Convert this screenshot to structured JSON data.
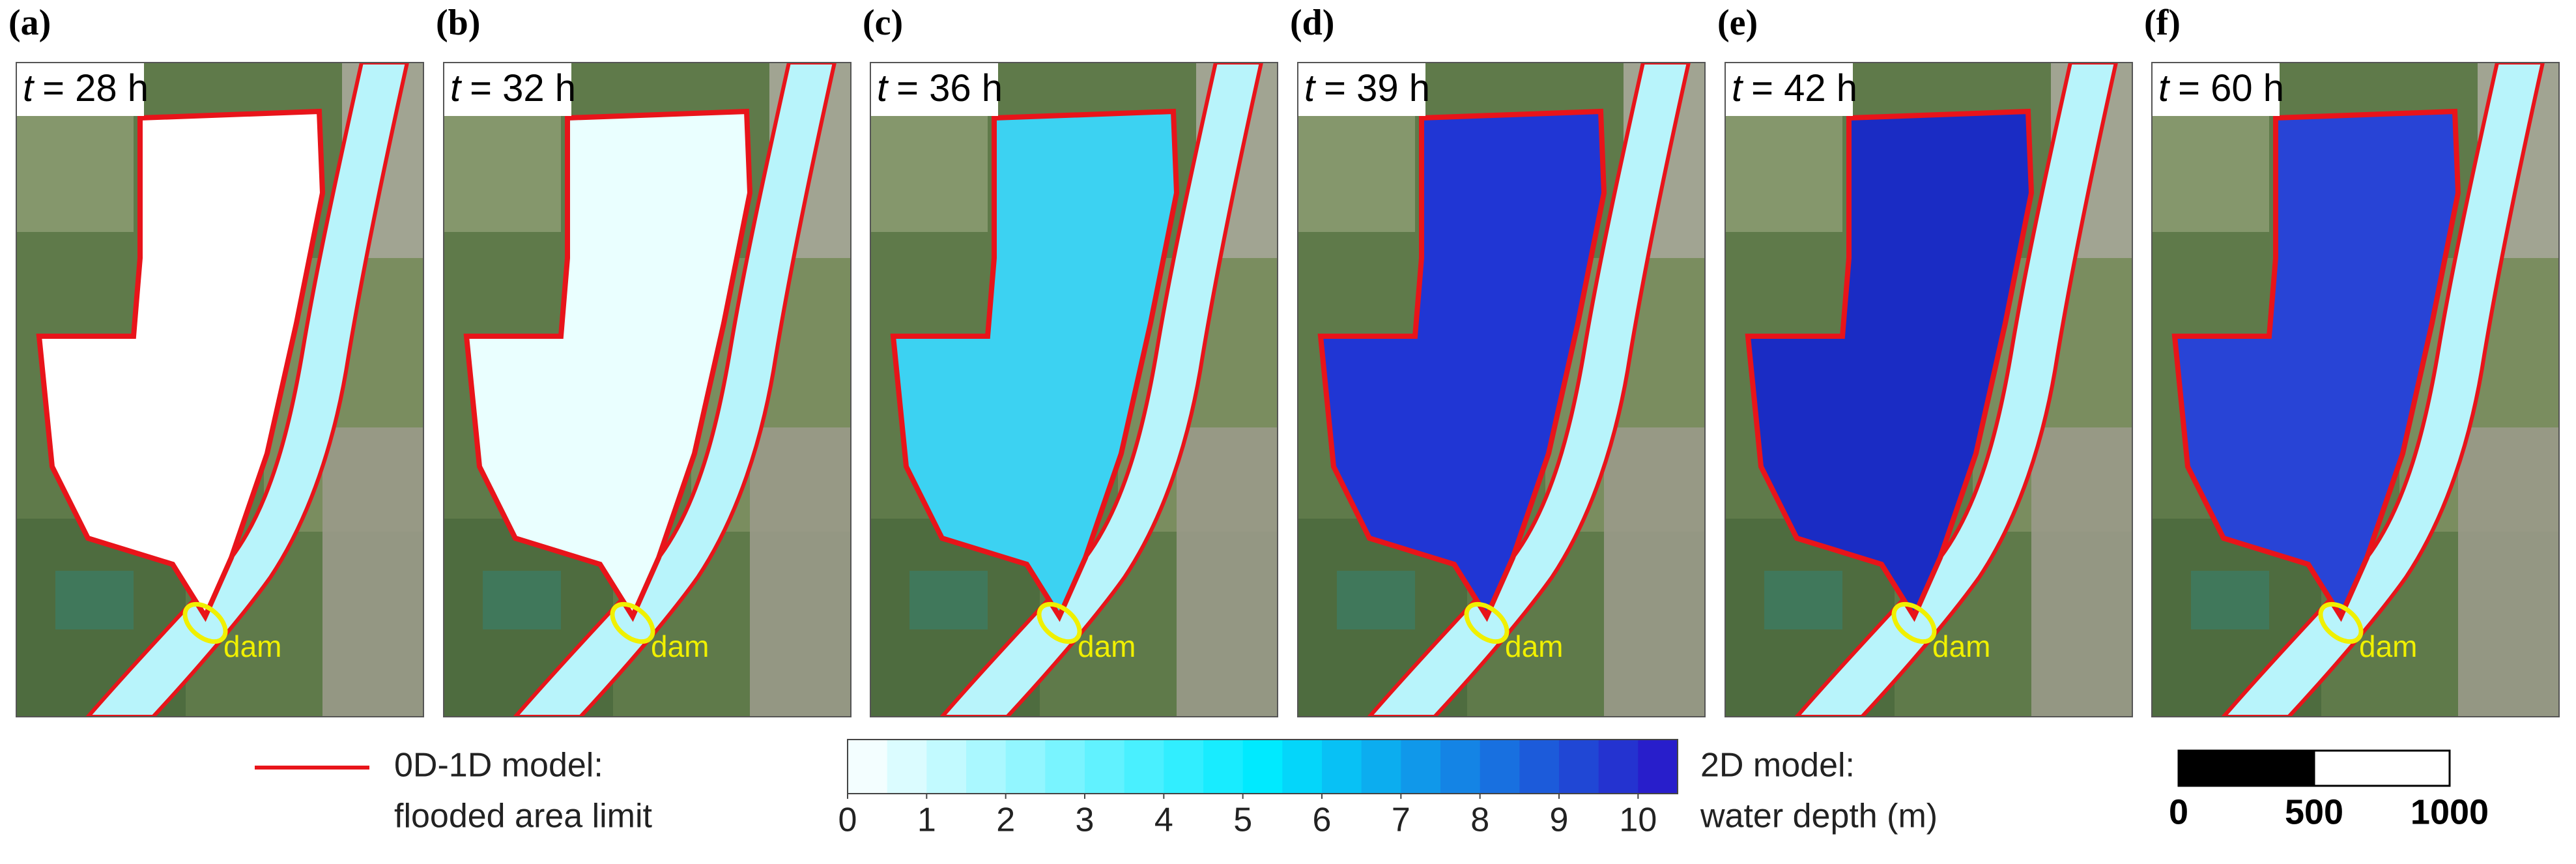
{
  "panels": [
    {
      "label": "(a)",
      "time_var": "t",
      "time": "= 28 h",
      "dam_label": "dam",
      "flood_color": "#ffffff"
    },
    {
      "label": "(b)",
      "time_var": "t",
      "time": "= 32 h",
      "dam_label": "dam",
      "flood_color": "#eaffff"
    },
    {
      "label": "(c)",
      "time_var": "t",
      "time": "= 36 h",
      "dam_label": "dam",
      "flood_color": "#3cd2f2"
    },
    {
      "label": "(d)",
      "time_var": "t",
      "time": "= 39 h",
      "dam_label": "dam",
      "flood_color": "#2036d4"
    },
    {
      "label": "(e)",
      "time_var": "t",
      "time": "= 42 h",
      "dam_label": "dam",
      "flood_color": "#1a2cc4"
    },
    {
      "label": "(f)",
      "time_var": "t",
      "time": "= 60 h",
      "dam_label": "dam",
      "flood_color": "#2844d6"
    }
  ],
  "legend": {
    "line_label_1": "0D-1D model:",
    "line_label_2": "flooded area limit",
    "line_color": "#e8141a",
    "colorbar": {
      "title_1": "2D model:",
      "title_2": "water depth (m)",
      "lim": [
        0,
        10.5
      ],
      "ticks": [
        0,
        1,
        2,
        3,
        4,
        5,
        6,
        7,
        8,
        9,
        10
      ],
      "step": 0.5,
      "colors": [
        "#ffffff",
        "#00eaff",
        "#2a14c8"
      ]
    },
    "scale_bar": {
      "ticks": [
        0,
        500,
        1000
      ]
    }
  }
}
